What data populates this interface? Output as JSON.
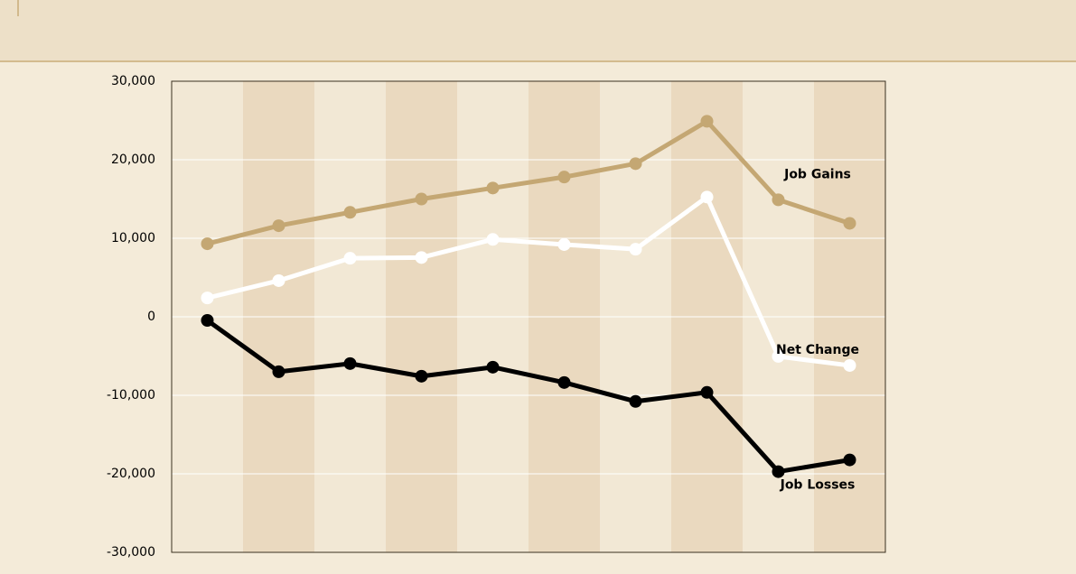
{
  "chart_data": {
    "type": "line",
    "series": [
      {
        "name": "Job Gains",
        "color": "#c4a773",
        "values": [
          9300,
          11600,
          13300,
          15000,
          16400,
          17800,
          19500,
          24900,
          14900,
          11900
        ]
      },
      {
        "name": "Net Change",
        "color": "#ffffff",
        "values": [
          2400,
          4600,
          7450,
          7550,
          9850,
          9200,
          8600,
          15250,
          -5050,
          -6200
        ]
      },
      {
        "name": "Job Losses",
        "color": "#000000",
        "values": [
          -460,
          -7000,
          -5960,
          -7570,
          -6420,
          -8370,
          -10780,
          -9630,
          -19720,
          -18230
        ]
      }
    ],
    "ylim": [
      -30000,
      30000
    ],
    "yticks": [
      {
        "value": -30000,
        "label": "-30,000"
      },
      {
        "value": -20000,
        "label": "-20,000"
      },
      {
        "value": -10000,
        "label": "-10,000"
      },
      0,
      {
        "value": 10000,
        "label": "10,000"
      },
      {
        "value": 20000,
        "label": "20,000"
      },
      {
        "value": 30000,
        "label": "30,000"
      }
    ],
    "grid": true
  }
}
